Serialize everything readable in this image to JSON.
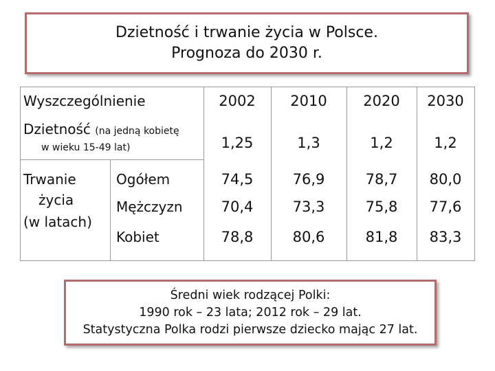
{
  "title": {
    "line1": "Dzietność i trwanie życia w Polsce.",
    "line2": "Prognoza do 2030 r."
  },
  "table": {
    "header_label": "Wyszczególnienie",
    "years": [
      "2002",
      "2010",
      "2020",
      "2030"
    ],
    "fertility": {
      "label": "Dzietność",
      "sub1": "(na jedną kobietę",
      "sub2": "w wieku 15-49 lat)",
      "values": [
        "1,25",
        "1,3",
        "1,2",
        "1,2"
      ]
    },
    "life": {
      "label_line1": "Trwanie",
      "label_line2": "życia",
      "label_line3": "(w latach)",
      "rows": [
        {
          "label": "Ogółem",
          "values": [
            "74,5",
            "76,9",
            "78,7",
            "80,0"
          ]
        },
        {
          "label": "Mężczyzn",
          "values": [
            "70,4",
            "73,3",
            "75,8",
            "77,6"
          ]
        },
        {
          "label": "Kobiet",
          "values": [
            "78,8",
            "80,6",
            "81,8",
            "83,3"
          ]
        }
      ]
    }
  },
  "note": {
    "line1": "Średni wiek rodzącej Polki:",
    "line2": "1990 rok – 23 lata; 2012 rok – 29 lat.",
    "line3": "Statystyczna Polka rodzi pierwsze dziecko mając 27 lat."
  },
  "colors": {
    "box_border": "#b56b6b",
    "grid": "#9a9a9a"
  }
}
